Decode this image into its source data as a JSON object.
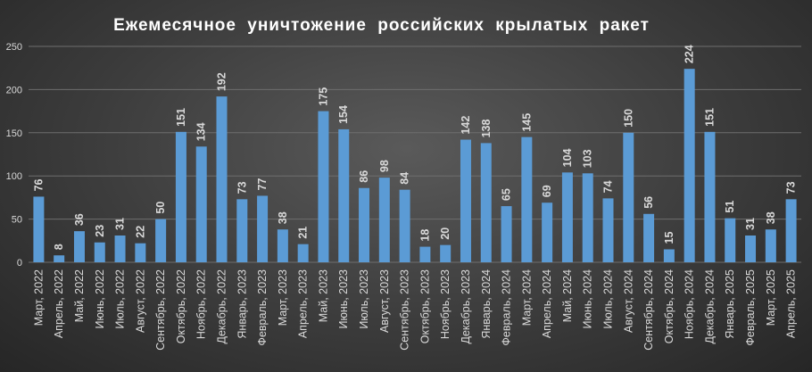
{
  "chart_data": {
    "type": "bar",
    "title": "Ежемесячное уничтожение российских крылатых ракет",
    "xlabel": "",
    "ylabel": "",
    "ylim": [
      0,
      250
    ],
    "yticks": [
      0,
      50,
      100,
      150,
      200,
      250
    ],
    "grid": true,
    "legend": "none",
    "bar_color": "#5b9bd5",
    "categories": [
      "Март, 2022",
      "Апрель, 2022",
      "Май, 2022",
      "Июнь, 2022",
      "Июль, 2022",
      "Август, 2022",
      "Сентябрь, 2022",
      "Октябрь, 2022",
      "Ноябрь, 2022",
      "Декабрь, 2022",
      "Январь, 2023",
      "Февраль, 2023",
      "Март, 2023",
      "Апрель, 2023",
      "Май, 2023",
      "Июнь, 2023",
      "Июль, 2023",
      "Август, 2023",
      "Сентябрь, 2023",
      "Октябрь, 2023",
      "Ноябрь, 2023",
      "Декабрь, 2023",
      "Январь, 2024",
      "Февраль, 2024",
      "Март, 2024",
      "Апрель, 2024",
      "Май, 2024",
      "Июнь, 2024",
      "Июль, 2024",
      "Август, 2024",
      "Сентябрь, 2024",
      "Октябрь, 2024",
      "Ноябрь, 2024",
      "Декабрь, 2024",
      "Январь, 2025",
      "Февраль, 2025",
      "Март, 2025",
      "Апрель, 2025"
    ],
    "values": [
      76,
      8,
      36,
      23,
      31,
      22,
      50,
      151,
      134,
      192,
      73,
      77,
      38,
      21,
      175,
      154,
      86,
      98,
      84,
      18,
      20,
      142,
      138,
      65,
      145,
      69,
      104,
      103,
      74,
      150,
      56,
      15,
      224,
      151,
      51,
      31,
      38,
      73
    ]
  }
}
